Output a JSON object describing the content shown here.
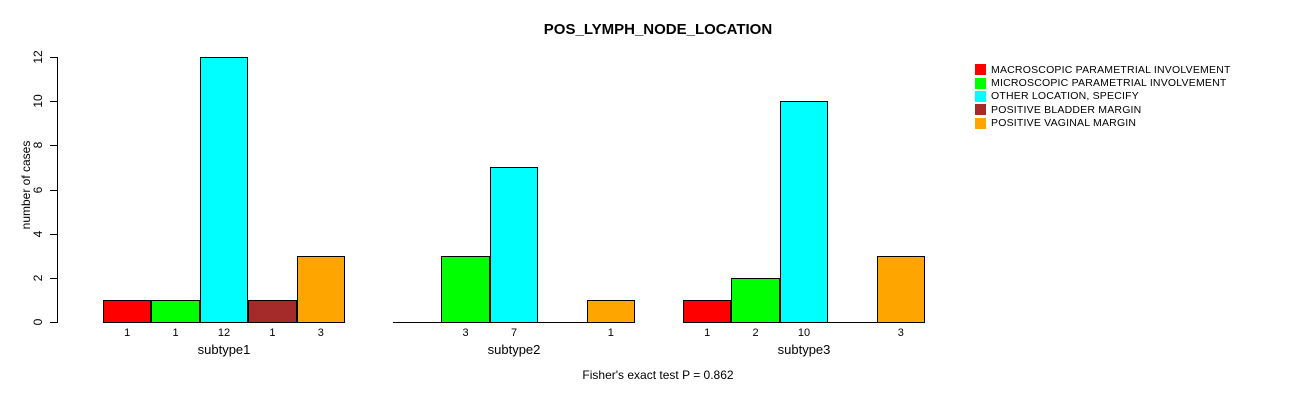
{
  "title": "POS_LYMPH_NODE_LOCATION",
  "y_axis_label": "number of cases",
  "footnote": "Fisher's exact test P = 0.862",
  "colors": {
    "background": "#FFFFFF",
    "axis": "#000000",
    "text": "#000000"
  },
  "chart_data": {
    "type": "bar",
    "title": "POS_LYMPH_NODE_LOCATION",
    "xlabel": "",
    "ylabel": "number of cases",
    "categories": [
      "subtype1",
      "subtype2",
      "subtype3"
    ],
    "series": [
      {
        "name": "MACROSCOPIC PARAMETRIAL INVOLVEMENT",
        "color": "#FF0000",
        "values": [
          1,
          0,
          1
        ]
      },
      {
        "name": "MICROSCOPIC PARAMETRIAL INVOLVEMENT",
        "color": "#00FF00",
        "values": [
          1,
          3,
          2
        ]
      },
      {
        "name": "OTHER LOCATION, SPECIFY",
        "color": "#00FFFF",
        "values": [
          12,
          7,
          10
        ]
      },
      {
        "name": "POSITIVE BLADDER MARGIN",
        "color": "#A52A2A",
        "values": [
          1,
          0,
          0
        ]
      },
      {
        "name": "POSITIVE VAGINAL MARGIN",
        "color": "#FFA500",
        "values": [
          3,
          1,
          3
        ]
      }
    ],
    "yticks": [
      0,
      2,
      4,
      6,
      8,
      10,
      12
    ],
    "ylim": [
      0,
      12
    ],
    "grid": false,
    "bar_value_labels_shown_for_nonzero_only": true,
    "legend_position": "right",
    "annotation": "Fisher's exact test P = 0.862"
  }
}
